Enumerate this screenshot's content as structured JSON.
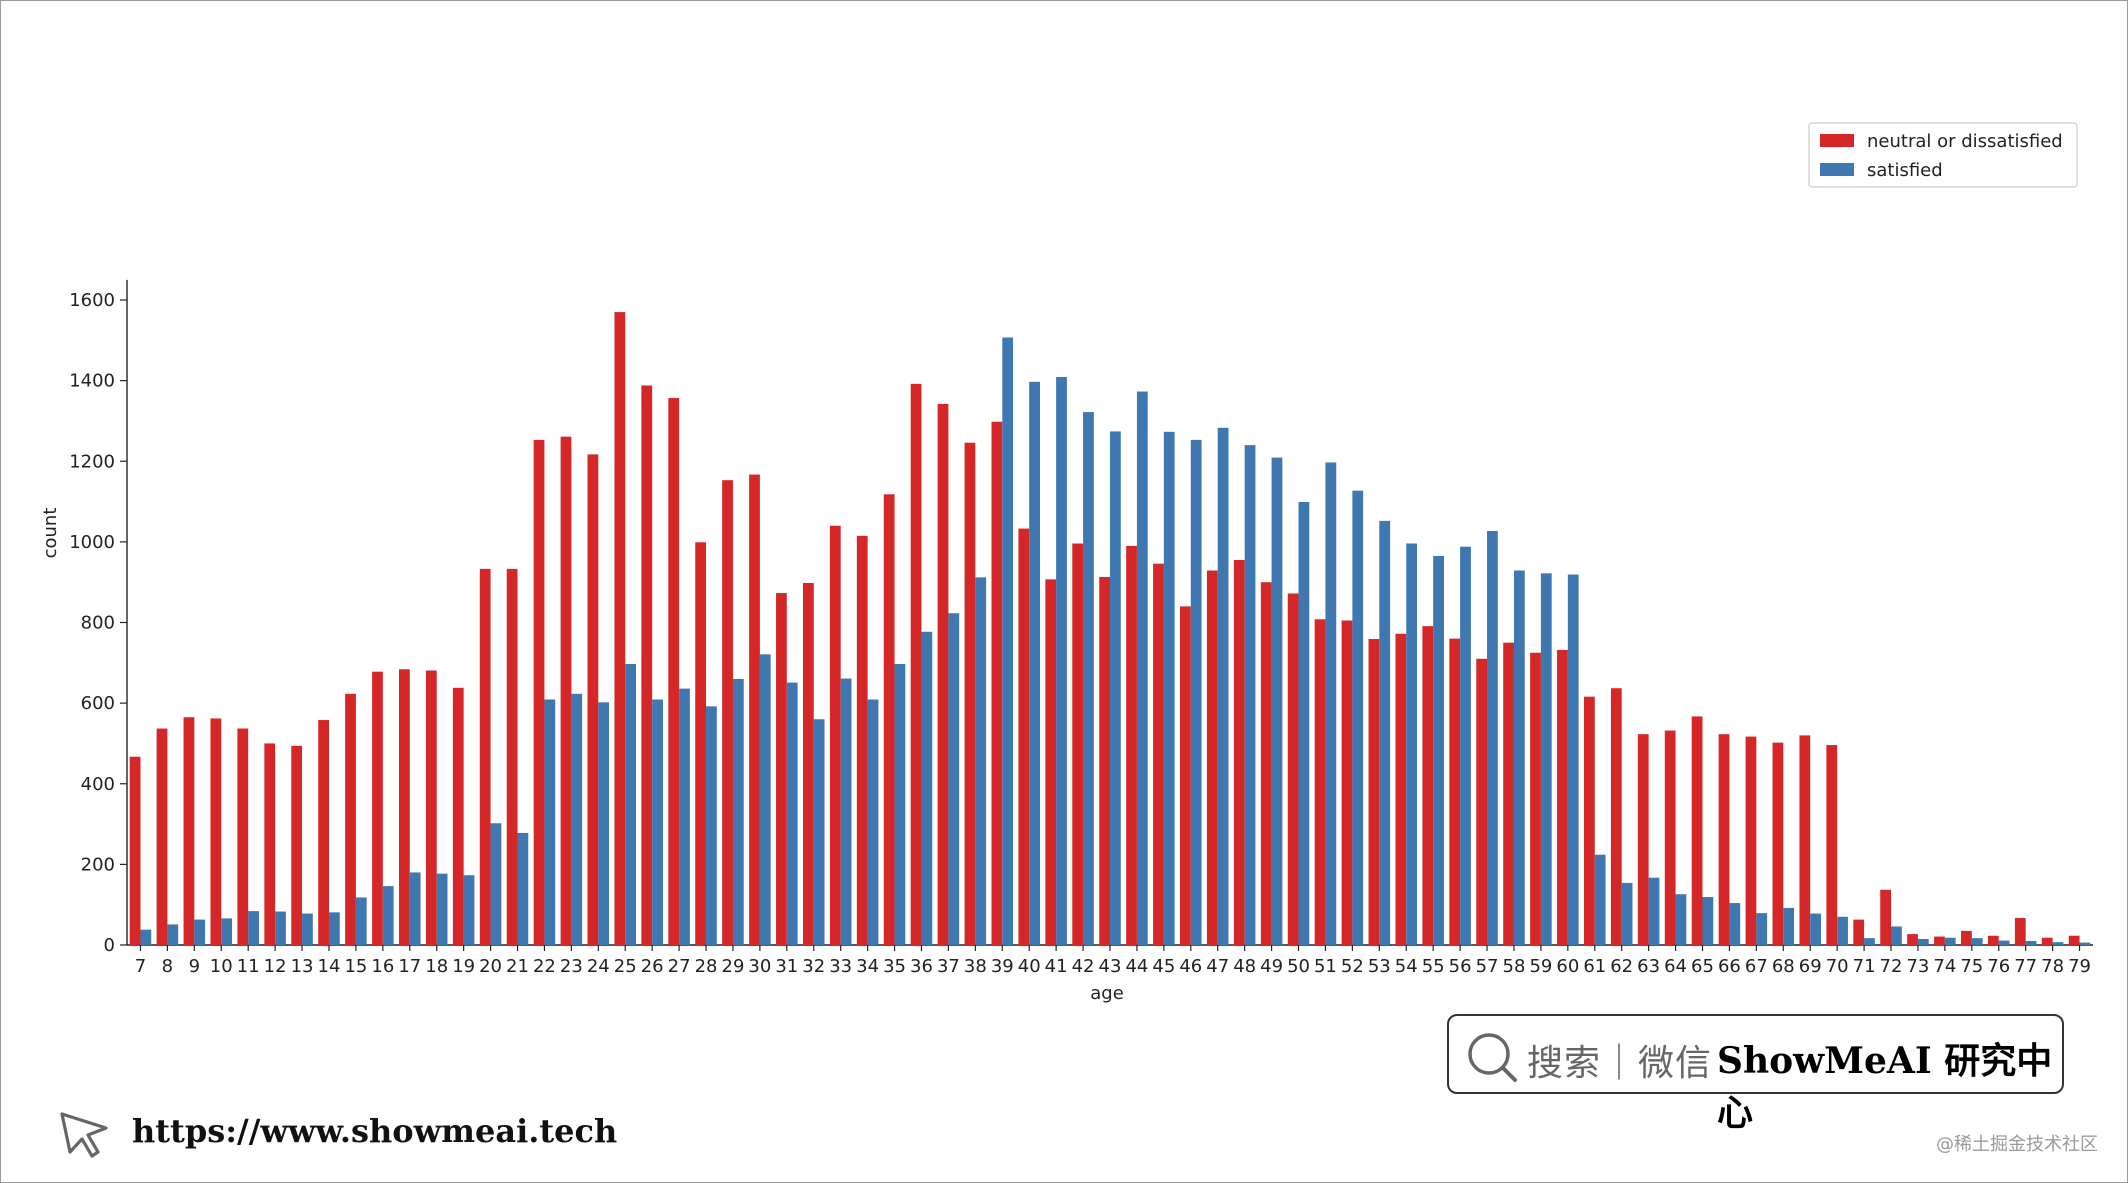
{
  "chart_data": {
    "type": "bar",
    "xlabel": "age",
    "ylabel": "count",
    "ylim": [
      0,
      1650
    ],
    "yticks": [
      0,
      200,
      400,
      600,
      800,
      1000,
      1200,
      1400,
      1600
    ],
    "legend_position": "top-right",
    "grid": false,
    "categories": [
      "7",
      "8",
      "9",
      "10",
      "11",
      "12",
      "13",
      "14",
      "15",
      "16",
      "17",
      "18",
      "19",
      "20",
      "21",
      "22",
      "23",
      "24",
      "25",
      "26",
      "27",
      "28",
      "29",
      "30",
      "31",
      "32",
      "33",
      "34",
      "35",
      "36",
      "37",
      "38",
      "39",
      "40",
      "41",
      "42",
      "43",
      "44",
      "45",
      "46",
      "47",
      "48",
      "49",
      "50",
      "51",
      "52",
      "53",
      "54",
      "55",
      "56",
      "57",
      "58",
      "59",
      "60",
      "61",
      "62",
      "63",
      "64",
      "65",
      "66",
      "67",
      "68",
      "69",
      "70",
      "71",
      "72",
      "73",
      "74",
      "75",
      "76",
      "77",
      "78",
      "79"
    ],
    "series": [
      {
        "name": "neutral or dissatisfied",
        "color": "#d62728",
        "values": [
          467,
          537,
          565,
          562,
          537,
          500,
          494,
          558,
          623,
          678,
          684,
          681,
          638,
          933,
          933,
          1253,
          1261,
          1217,
          1570,
          1388,
          1357,
          999,
          1153,
          1167,
          873,
          898,
          1040,
          1015,
          1118,
          1392,
          1342,
          1246,
          1298,
          1033,
          907,
          996,
          913,
          990,
          946,
          840,
          929,
          955,
          900,
          872,
          808,
          805,
          759,
          772,
          791,
          760,
          710,
          750,
          725,
          732,
          616,
          637,
          523,
          532,
          567,
          523,
          517,
          502,
          520,
          496,
          63,
          137,
          27,
          21,
          35,
          23,
          67,
          18,
          23
        ]
      },
      {
        "name": "satisfied",
        "color": "#3f77b1",
        "values": [
          38,
          51,
          63,
          66,
          84,
          83,
          78,
          81,
          118,
          146,
          180,
          177,
          173,
          302,
          278,
          609,
          623,
          602,
          697,
          609,
          636,
          592,
          660,
          721,
          651,
          560,
          661,
          609,
          697,
          777,
          823,
          912,
          1507,
          1397,
          1409,
          1322,
          1274,
          1373,
          1273,
          1253,
          1283,
          1240,
          1209,
          1099,
          1197,
          1127,
          1052,
          996,
          965,
          988,
          1027,
          929,
          922,
          919,
          224,
          154,
          167,
          126,
          119,
          104,
          79,
          92,
          78,
          70,
          17,
          46,
          15,
          18,
          17,
          11,
          10,
          7,
          6
        ]
      }
    ]
  },
  "search_box": {
    "search_label": "搜索｜微信",
    "brand_label": "ShowMeAI 研究中心"
  },
  "footer": {
    "url": "https://www.showmeai.tech",
    "watermark": "@稀土掘金技术社区"
  }
}
